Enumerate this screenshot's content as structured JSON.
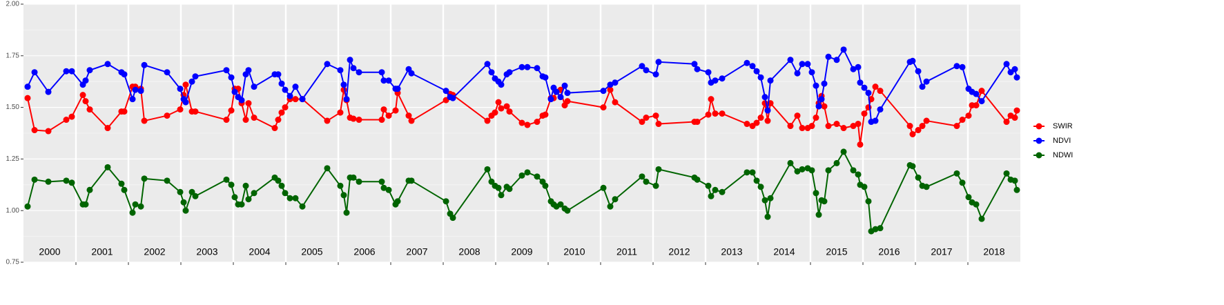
{
  "chart_data": {
    "type": "line",
    "x": [
      2000.079,
      2000.211,
      2000.474,
      2000.816,
      2000.921,
      2001.132,
      2001.184,
      2001.263,
      2001.605,
      2001.868,
      2001.921,
      2002.079,
      2002.132,
      2002.237,
      2002.303,
      2002.737,
      2002.987,
      2003.053,
      2003.092,
      2003.211,
      2003.276,
      2003.868,
      2003.961,
      2004.026,
      2004.092,
      2004.158,
      2004.237,
      2004.289,
      2004.395,
      2004.789,
      2004.855,
      2004.921,
      2004.987,
      2005.079,
      2005.184,
      2005.316,
      2005.789,
      2006.039,
      2006.105,
      2006.158,
      2006.224,
      2006.289,
      2006.395,
      2006.829,
      2006.868,
      2006.961,
      2007.092,
      2007.132,
      2007.342,
      2007.395,
      2008.053,
      2008.132,
      2008.184,
      2008.842,
      2008.921,
      2008.987,
      2009.053,
      2009.105,
      2009.211,
      2009.263,
      2009.5,
      2009.605,
      2009.789,
      2009.895,
      2009.947,
      2010.053,
      2010.105,
      2010.158,
      2010.237,
      2010.316,
      2010.368,
      2011.053,
      2011.184,
      2011.276,
      2011.789,
      2011.868,
      2012.053,
      2012.105,
      2012.789,
      2012.842,
      2013.053,
      2013.105,
      2013.184,
      2013.316,
      2013.789,
      2013.895,
      2013.974,
      2014.053,
      2014.132,
      2014.184,
      2014.237,
      2014.618,
      2014.75,
      2014.842,
      2014.947,
      2015.026,
      2015.105,
      2015.158,
      2015.211,
      2015.263,
      2015.342,
      2015.5,
      2015.632,
      2015.816,
      2015.908,
      2015.947,
      2016.026,
      2016.105,
      2016.158,
      2016.237,
      2016.329,
      2016.895,
      2016.947,
      2017.053,
      2017.132,
      2017.211,
      2017.789,
      2017.895,
      2018.013,
      2018.079,
      2018.158,
      2018.263,
      2018.737,
      2018.816,
      2018.895,
      2018.934
    ],
    "series": [
      {
        "name": "SWIR",
        "color": "#ff0000",
        "values": [
          1.545,
          1.39,
          1.385,
          1.44,
          1.455,
          1.56,
          1.53,
          1.49,
          1.4,
          1.48,
          1.48,
          1.6,
          1.6,
          1.59,
          1.435,
          1.46,
          1.49,
          1.56,
          1.61,
          1.48,
          1.48,
          1.44,
          1.485,
          1.59,
          1.59,
          1.52,
          1.44,
          1.52,
          1.45,
          1.4,
          1.44,
          1.475,
          1.5,
          1.54,
          1.54,
          1.54,
          1.435,
          1.475,
          1.585,
          1.535,
          1.45,
          1.445,
          1.44,
          1.44,
          1.49,
          1.46,
          1.485,
          1.57,
          1.46,
          1.435,
          1.535,
          1.565,
          1.56,
          1.435,
          1.46,
          1.475,
          1.525,
          1.495,
          1.505,
          1.48,
          1.425,
          1.415,
          1.43,
          1.46,
          1.465,
          1.545,
          1.545,
          1.575,
          1.585,
          1.51,
          1.53,
          1.5,
          1.585,
          1.525,
          1.43,
          1.45,
          1.46,
          1.42,
          1.43,
          1.43,
          1.465,
          1.54,
          1.47,
          1.47,
          1.42,
          1.41,
          1.425,
          1.45,
          1.52,
          1.435,
          1.52,
          1.41,
          1.46,
          1.4,
          1.4,
          1.41,
          1.45,
          1.52,
          1.555,
          1.505,
          1.41,
          1.42,
          1.4,
          1.41,
          1.42,
          1.32,
          1.47,
          1.5,
          1.54,
          1.6,
          1.58,
          1.41,
          1.37,
          1.39,
          1.41,
          1.435,
          1.41,
          1.44,
          1.46,
          1.51,
          1.51,
          1.58,
          1.43,
          1.46,
          1.45,
          1.485
        ]
      },
      {
        "name": "NDVI",
        "color": "#0000ff",
        "values": [
          1.6,
          1.67,
          1.575,
          1.675,
          1.675,
          1.61,
          1.63,
          1.68,
          1.71,
          1.67,
          1.66,
          1.54,
          1.585,
          1.58,
          1.705,
          1.67,
          1.59,
          1.54,
          1.525,
          1.625,
          1.65,
          1.68,
          1.645,
          1.575,
          1.55,
          1.535,
          1.66,
          1.68,
          1.6,
          1.66,
          1.66,
          1.615,
          1.585,
          1.555,
          1.6,
          1.54,
          1.71,
          1.68,
          1.61,
          1.54,
          1.73,
          1.69,
          1.67,
          1.67,
          1.63,
          1.63,
          1.59,
          1.59,
          1.685,
          1.665,
          1.58,
          1.55,
          1.545,
          1.71,
          1.67,
          1.64,
          1.625,
          1.61,
          1.66,
          1.67,
          1.695,
          1.695,
          1.69,
          1.65,
          1.645,
          1.54,
          1.595,
          1.575,
          1.55,
          1.605,
          1.57,
          1.58,
          1.61,
          1.62,
          1.7,
          1.68,
          1.66,
          1.72,
          1.71,
          1.685,
          1.67,
          1.62,
          1.63,
          1.64,
          1.715,
          1.7,
          1.675,
          1.645,
          1.55,
          1.485,
          1.63,
          1.73,
          1.665,
          1.71,
          1.71,
          1.67,
          1.605,
          1.505,
          1.54,
          1.615,
          1.745,
          1.73,
          1.78,
          1.685,
          1.695,
          1.62,
          1.595,
          1.57,
          1.43,
          1.435,
          1.49,
          1.72,
          1.725,
          1.675,
          1.6,
          1.625,
          1.7,
          1.695,
          1.59,
          1.575,
          1.565,
          1.53,
          1.71,
          1.67,
          1.685,
          1.645
        ]
      },
      {
        "name": "NDWI",
        "color": "#006400",
        "values": [
          1.02,
          1.15,
          1.14,
          1.145,
          1.135,
          1.03,
          1.03,
          1.1,
          1.21,
          1.13,
          1.1,
          0.99,
          1.03,
          1.02,
          1.155,
          1.145,
          1.09,
          1.04,
          1.0,
          1.09,
          1.07,
          1.15,
          1.125,
          1.065,
          1.03,
          1.03,
          1.12,
          1.055,
          1.085,
          1.16,
          1.145,
          1.12,
          1.085,
          1.06,
          1.06,
          1.02,
          1.205,
          1.12,
          1.075,
          0.99,
          1.16,
          1.16,
          1.14,
          1.14,
          1.11,
          1.1,
          1.03,
          1.045,
          1.145,
          1.145,
          1.045,
          0.985,
          0.965,
          1.2,
          1.14,
          1.12,
          1.11,
          1.075,
          1.115,
          1.105,
          1.17,
          1.185,
          1.165,
          1.14,
          1.12,
          1.045,
          1.03,
          1.02,
          1.03,
          1.01,
          1.0,
          1.11,
          1.02,
          1.055,
          1.165,
          1.14,
          1.12,
          1.2,
          1.16,
          1.15,
          1.12,
          1.07,
          1.1,
          1.09,
          1.185,
          1.185,
          1.145,
          1.115,
          1.05,
          0.97,
          1.06,
          1.23,
          1.19,
          1.2,
          1.205,
          1.195,
          1.085,
          0.98,
          1.05,
          1.045,
          1.195,
          1.23,
          1.285,
          1.195,
          1.175,
          1.125,
          1.115,
          1.045,
          0.9,
          0.91,
          0.915,
          1.22,
          1.215,
          1.16,
          1.12,
          1.115,
          1.18,
          1.135,
          1.065,
          1.04,
          1.03,
          0.96,
          1.18,
          1.15,
          1.145,
          1.1
        ]
      }
    ],
    "xlim": [
      2000,
      2019
    ],
    "ylim": [
      0.75,
      2.0
    ],
    "yticks": [
      {
        "value": 0.75,
        "label": "0.75"
      },
      {
        "value": 1.0,
        "label": "1.00"
      },
      {
        "value": 1.25,
        "label": "1.25"
      },
      {
        "value": 1.5,
        "label": "1.50"
      },
      {
        "value": 1.75,
        "label": "1.75"
      },
      {
        "value": 2.0,
        "label": "2.00"
      }
    ],
    "yminor_grid": [
      0.875,
      1.125,
      1.375,
      1.625,
      1.875
    ],
    "xgrid": [
      2001,
      2002,
      2003,
      2004,
      2005,
      2006,
      2007,
      2008,
      2009,
      2010,
      2011,
      2012,
      2013,
      2014,
      2015,
      2016,
      2017,
      2018
    ],
    "year_labels": [
      {
        "value": 2000.5,
        "label": "2000"
      },
      {
        "value": 2001.5,
        "label": "2001"
      },
      {
        "value": 2002.5,
        "label": "2002"
      },
      {
        "value": 2003.5,
        "label": "2003"
      },
      {
        "value": 2004.5,
        "label": "2004"
      },
      {
        "value": 2005.5,
        "label": "2005"
      },
      {
        "value": 2006.5,
        "label": "2006"
      },
      {
        "value": 2007.5,
        "label": "2007"
      },
      {
        "value": 2008.5,
        "label": "2008"
      },
      {
        "value": 2009.5,
        "label": "2009"
      },
      {
        "value": 2010.5,
        "label": "2010"
      },
      {
        "value": 2011.5,
        "label": "2011"
      },
      {
        "value": 2012.5,
        "label": "2012"
      },
      {
        "value": 2013.5,
        "label": "2013"
      },
      {
        "value": 2014.5,
        "label": "2014"
      },
      {
        "value": 2015.5,
        "label": "2015"
      },
      {
        "value": 2016.5,
        "label": "2016"
      },
      {
        "value": 2017.5,
        "label": "2017"
      },
      {
        "value": 2018.5,
        "label": "2018"
      }
    ],
    "legend": "right",
    "grid": true
  }
}
